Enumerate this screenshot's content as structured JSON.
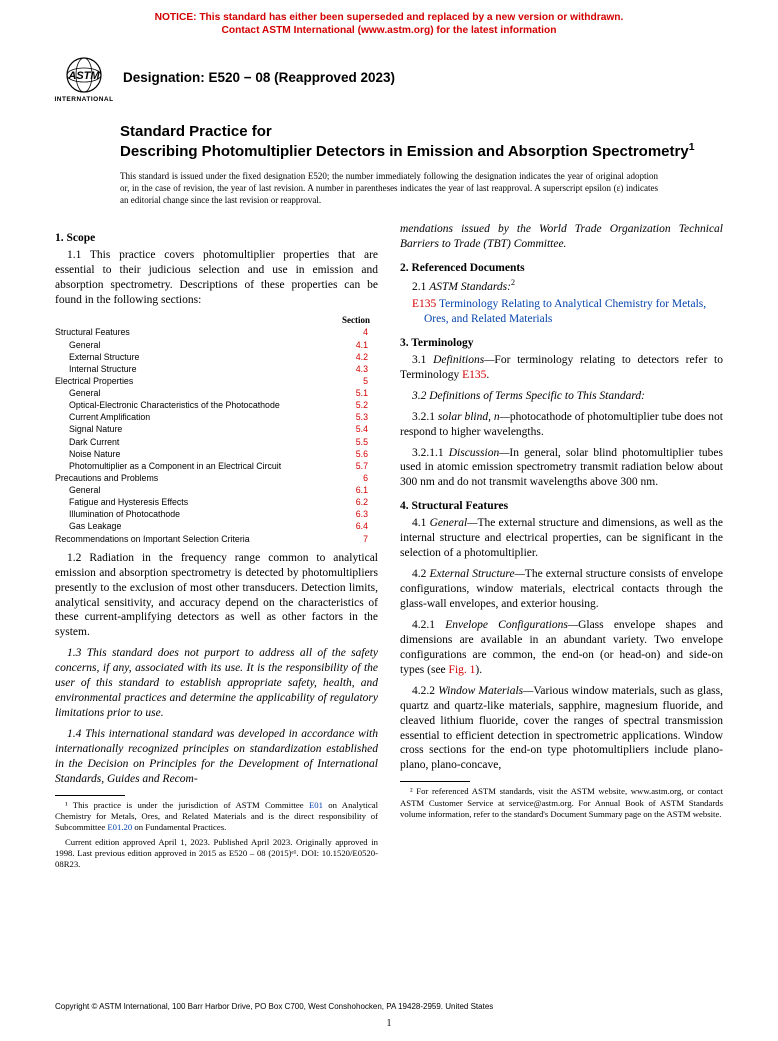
{
  "notice": {
    "line1": "NOTICE: This standard has either been superseded and replaced by a new version or withdrawn.",
    "line2": "Contact ASTM International (www.astm.org) for the latest information"
  },
  "logo_label": "INTERNATIONAL",
  "designation": "Designation: E520 − 08 (Reapproved 2023)",
  "title_prefix": "Standard Practice for",
  "title_main": "Describing Photomultiplier Detectors in Emission and Absorption Spectrometry",
  "title_sup": "1",
  "issuance": "This standard is issued under the fixed designation E520; the number immediately following the designation indicates the year of original adoption or, in the case of revision, the year of last revision. A number in parentheses indicates the year of last reapproval. A superscript epsilon (ε) indicates an editorial change since the last revision or reapproval.",
  "scope": {
    "head": "1. Scope",
    "p1": "1.1 This practice covers photomultiplier properties that are essential to their judicious selection and use in emission and absorption spectrometry. Descriptions of these properties can be found in the following sections:",
    "toc_header": "Section",
    "toc": [
      {
        "label": "Structural Features",
        "sec": "4",
        "indent": 0
      },
      {
        "label": "General",
        "sec": "4.1",
        "indent": 1
      },
      {
        "label": "External Structure",
        "sec": "4.2",
        "indent": 1
      },
      {
        "label": "Internal Structure",
        "sec": "4.3",
        "indent": 1
      },
      {
        "label": "Electrical Properties",
        "sec": "5",
        "indent": 0
      },
      {
        "label": "General",
        "sec": "5.1",
        "indent": 1
      },
      {
        "label": "Optical-Electronic Characteristics of the Photocathode",
        "sec": "5.2",
        "indent": 1
      },
      {
        "label": "Current Amplification",
        "sec": "5.3",
        "indent": 1
      },
      {
        "label": "Signal Nature",
        "sec": "5.4",
        "indent": 1
      },
      {
        "label": "Dark Current",
        "sec": "5.5",
        "indent": 1
      },
      {
        "label": "Noise Nature",
        "sec": "5.6",
        "indent": 1
      },
      {
        "label": "Photomultiplier as a Component in an Electrical Circuit",
        "sec": "5.7",
        "indent": 1
      },
      {
        "label": "Precautions and Problems",
        "sec": "6",
        "indent": 0
      },
      {
        "label": "General",
        "sec": "6.1",
        "indent": 1
      },
      {
        "label": "Fatigue and Hysteresis Effects",
        "sec": "6.2",
        "indent": 1
      },
      {
        "label": "Illumination of Photocathode",
        "sec": "6.3",
        "indent": 1
      },
      {
        "label": "Gas Leakage",
        "sec": "6.4",
        "indent": 1
      },
      {
        "label": "Recommendations on Important Selection Criteria",
        "sec": "7",
        "indent": 0
      }
    ],
    "p2": "1.2 Radiation in the frequency range common to analytical emission and absorption spectrometry is detected by photomultipliers presently to the exclusion of most other transducers. Detection limits, analytical sensitivity, and accuracy depend on the characteristics of these current-amplifying detectors as well as other factors in the system.",
    "p3": "1.3 This standard does not purport to address all of the safety concerns, if any, associated with its use. It is the responsibility of the user of this standard to establish appropriate safety, health, and environmental practices and determine the applicability of regulatory limitations prior to use.",
    "p4_a": "1.4 This international standard was developed in accordance with internationally recognized principles on standardization established in the Decision on Principles for the Development of International Standards, Guides and Recom-",
    "p4_b": "mendations issued by the World Trade Organization Technical Barriers to Trade (TBT) Committee."
  },
  "refs": {
    "head": "2. Referenced Documents",
    "p1_lead": "2.1 ",
    "p1_label": "ASTM Standards:",
    "p1_sup": "2",
    "e135_code": "E135",
    "e135_text": " Terminology Relating to Analytical Chemistry for Metals, Ores, and Related Materials"
  },
  "terminology": {
    "head": "3. Terminology",
    "p1_a": "3.1 ",
    "p1_b": "Definitions—",
    "p1_c": "For terminology relating to detectors refer to Terminology ",
    "p1_d": "E135",
    "p1_e": ".",
    "p2": "3.2 Definitions of Terms Specific to This Standard:",
    "p3_a": "3.2.1 ",
    "p3_b": "solar blind, n—",
    "p3_c": "photocathode of photomultiplier tube does not respond to higher wavelengths.",
    "p4_a": "3.2.1.1 ",
    "p4_b": "Discussion—",
    "p4_c": "In general, solar blind photomultiplier tubes used in atomic emission spectrometry transmit radiation below about 300 nm and do not transmit wavelengths above 300 nm."
  },
  "structural": {
    "head": "4. Structural Features",
    "p1_a": "4.1 ",
    "p1_b": "General—",
    "p1_c": "The external structure and dimensions, as well as the internal structure and electrical properties, can be significant in the selection of a photomultiplier.",
    "p2_a": "4.2 ",
    "p2_b": "External Structure—",
    "p2_c": "The external structure consists of envelope configurations, window materials, electrical contacts through the glass-wall envelopes, and exterior housing.",
    "p3_a": "4.2.1 ",
    "p3_b": "Envelope Configurations—",
    "p3_c": "Glass envelope shapes and dimensions are available in an abundant variety. Two envelope configurations are common, the end-on (or head-on) and side-on types (see ",
    "p3_fig": "Fig. 1",
    "p3_d": ").",
    "p4_a": "4.2.2 ",
    "p4_b": "Window Materials—",
    "p4_c": "Various window materials, such as glass, quartz and quartz-like materials, sapphire, magnesium fluoride, and cleaved lithium fluoride, cover the ranges of spectral transmission essential to efficient detection in spectrometric applications. Window cross sections for the end-on type photomultipliers include plano-plano, plano-concave,"
  },
  "footnotes": {
    "fn1_a": "¹ This practice is under the jurisdiction of ASTM Committee ",
    "fn1_link1": "E01",
    "fn1_b": " on Analytical Chemistry for Metals, Ores, and Related Materials and is the direct responsibility of Subcommittee ",
    "fn1_link2": "E01.20",
    "fn1_c": " on Fundamental Practices.",
    "fn1_d": "Current edition approved April 1, 2023. Published April 2023. Originally approved in 1998. Last previous edition approved in 2015 as E520 – 08 (2015)ᵉ¹. DOI: 10.1520/E0520-08R23.",
    "fn2": "² For referenced ASTM standards, visit the ASTM website, www.astm.org, or contact ASTM Customer Service at service@astm.org. For Annual Book of ASTM Standards volume information, refer to the standard's Document Summary page on the ASTM website."
  },
  "copyright": "Copyright © ASTM International, 100 Barr Harbor Drive, PO Box C700, West Conshohocken, PA 19428-2959. United States",
  "pagenum": "1"
}
